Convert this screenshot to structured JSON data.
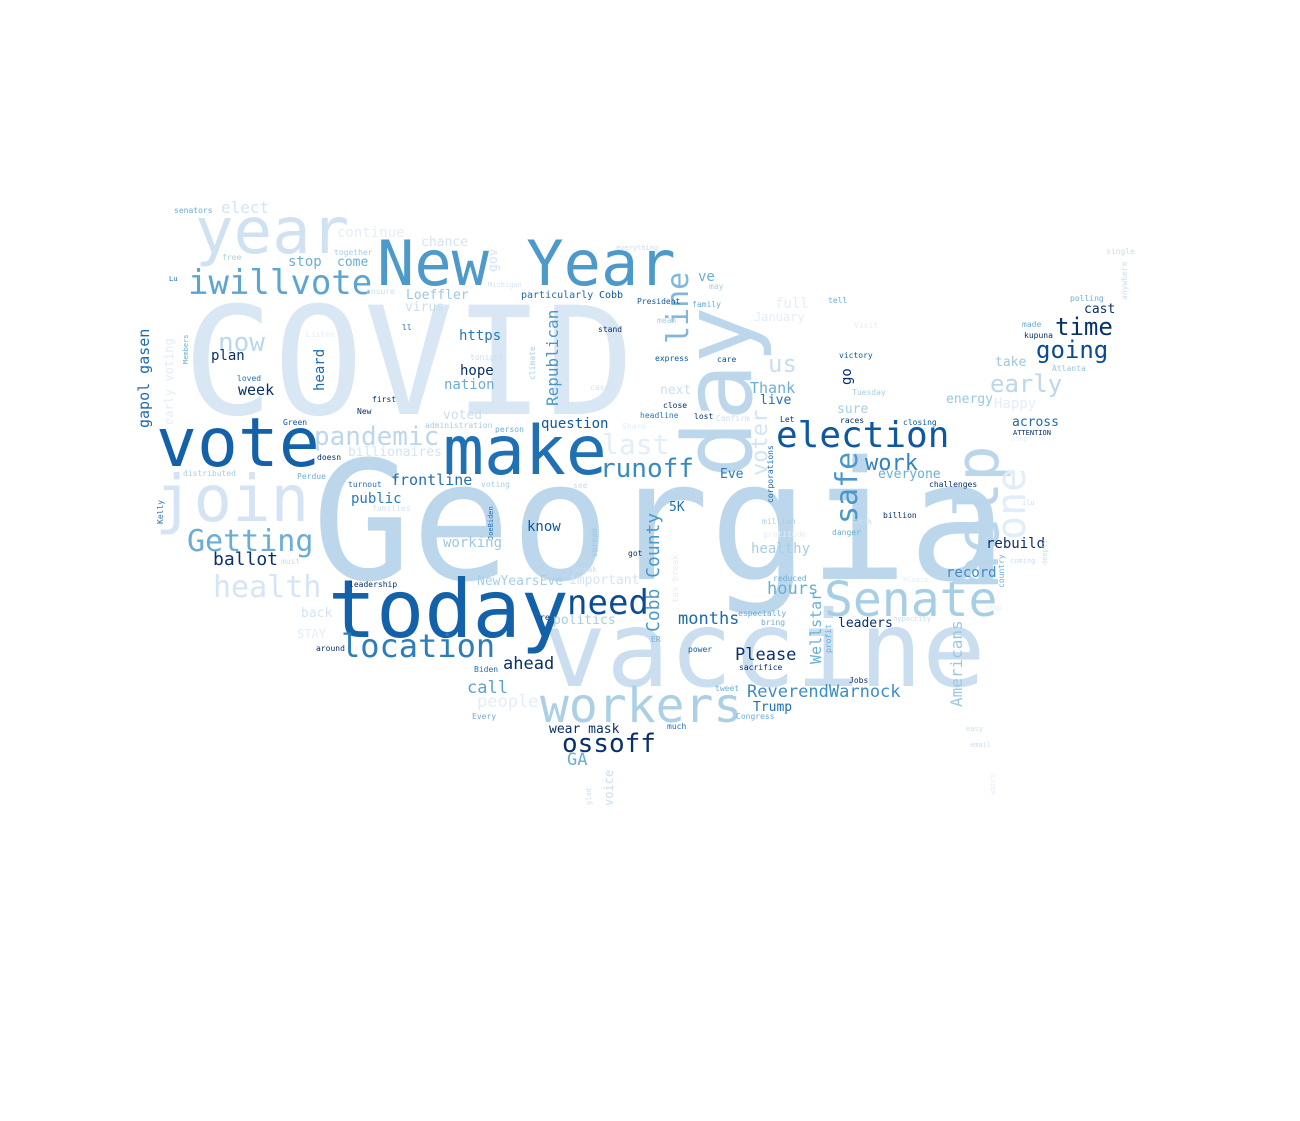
{
  "wordcloud": {
    "words": [
      {
        "text": "COVID",
        "color": "#d9e7f5"
      },
      {
        "text": "Georgia",
        "color": "#bcd7eb"
      },
      {
        "text": "vaccine",
        "color": "#cadef0"
      },
      {
        "text": "today",
        "color": "#1361a9"
      },
      {
        "text": "day",
        "color": "#bcd7eb"
      },
      {
        "text": "vote",
        "color": "#1361a9"
      },
      {
        "text": "make",
        "color": "#2070b4"
      },
      {
        "text": "New Year",
        "color": "#4d99ca"
      },
      {
        "text": "join",
        "color": "#d4e4f4"
      },
      {
        "text": "year",
        "color": "#d0e1f2"
      },
      {
        "text": "help",
        "color": "#bad6eb"
      },
      {
        "text": "Senate",
        "color": "#a6cee4"
      },
      {
        "text": "workers",
        "color": "#abd0e6"
      },
      {
        "text": "election",
        "color": "#0d58a1"
      },
      {
        "text": "one",
        "color": "#e1edf8"
      },
      {
        "text": "iwillvote",
        "color": "#5da5d1"
      },
      {
        "text": "need",
        "color": "#0b4d94"
      },
      {
        "text": "location",
        "color": "#2d7dbb"
      },
      {
        "text": "runoff",
        "color": "#3a8ac2"
      },
      {
        "text": "health",
        "color": "#d6e5f4"
      },
      {
        "text": "Getting",
        "color": "#6aaed6"
      },
      {
        "text": "pandemic",
        "color": "#bcd7eb"
      },
      {
        "text": "line",
        "color": "#7fb8da"
      },
      {
        "text": "safe",
        "color": "#4a98c9"
      },
      {
        "text": "ossoff",
        "color": "#08306b"
      },
      {
        "text": "last",
        "color": "#e3eef9"
      },
      {
        "text": "going",
        "color": "#0a4a90"
      },
      {
        "text": "early",
        "color": "#bcd7eb"
      },
      {
        "text": "time",
        "color": "#08306b"
      },
      {
        "text": "work",
        "color": "#3282be"
      },
      {
        "text": "now",
        "color": "#bcd7eb"
      },
      {
        "text": "us",
        "color": "#cadef0"
      },
      {
        "text": "ballot",
        "color": "#08306b"
      },
      {
        "text": "voter",
        "color": "#d4e4f4"
      },
      {
        "text": "Cobb County",
        "color": "#4a98c9"
      },
      {
        "text": "Republican",
        "color": "#4a98c9"
      },
      {
        "text": "Americans",
        "color": "#9ac8e0"
      },
      {
        "text": "ReverendWarnock",
        "color": "#3d8dc4"
      },
      {
        "text": "ahead",
        "color": "#08306b"
      },
      {
        "text": "frontline",
        "color": "#2070b4"
      },
      {
        "text": "Please",
        "color": "#08306b"
      },
      {
        "text": "call",
        "color": "#5ba3d0"
      },
      {
        "text": "months",
        "color": "#1c6aaf"
      },
      {
        "text": "hours",
        "color": "#6aaed6"
      },
      {
        "text": "Wellstar",
        "color": "#6aaed6"
      },
      {
        "text": "GA",
        "color": "#6aaed6"
      },
      {
        "text": "people",
        "color": "#e3eef9"
      },
      {
        "text": "gapol gasen",
        "color": "#1c6aaf"
      },
      {
        "text": "elect",
        "color": "#d4e4f4"
      },
      {
        "text": "week",
        "color": "#08306b"
      },
      {
        "text": "Thank",
        "color": "#6aaed6"
      },
      {
        "text": "record",
        "color": "#3d8dc4"
      },
      {
        "text": "rebuild",
        "color": "#08306b"
      },
      {
        "text": "healthy",
        "color": "#a6cee4"
      },
      {
        "text": "hope",
        "color": "#08306b"
      },
      {
        "text": "nation",
        "color": "#6aaed6"
      },
      {
        "text": "https",
        "color": "#2878b8"
      },
      {
        "text": "question",
        "color": "#0d58a1"
      },
      {
        "text": "know",
        "color": "#0d58a1"
      },
      {
        "text": "public",
        "color": "#2878b8"
      },
      {
        "text": "working",
        "color": "#9ac8e0"
      },
      {
        "text": "plan",
        "color": "#08306b"
      },
      {
        "text": "heard",
        "color": "#1c6aaf"
      },
      {
        "text": "stop",
        "color": "#6aaed6"
      },
      {
        "text": "come",
        "color": "#6aaed6"
      },
      {
        "text": "chance",
        "color": "#d4e4f4"
      },
      {
        "text": "continue",
        "color": "#e3eef9"
      },
      {
        "text": "Loeffler",
        "color": "#9ac8e0"
      },
      {
        "text": "virus",
        "color": "#cadef0"
      },
      {
        "text": "ve",
        "color": "#6aaed6"
      },
      {
        "text": "gov",
        "color": "#d4e4f4"
      },
      {
        "text": "full",
        "color": "#e3eef9"
      },
      {
        "text": "January",
        "color": "#e3eef9"
      },
      {
        "text": "take",
        "color": "#9ac8e0"
      },
      {
        "text": "Happy",
        "color": "#e3eef9"
      },
      {
        "text": "energy",
        "color": "#9ac8e0"
      },
      {
        "text": "across",
        "color": "#1c6aaf"
      },
      {
        "text": "cast",
        "color": "#08306b"
      },
      {
        "text": "next",
        "color": "#cadef0"
      },
      {
        "text": "live",
        "color": "#2070b4"
      },
      {
        "text": "sure",
        "color": "#a6cee4"
      },
      {
        "text": "go",
        "color": "#08306b"
      },
      {
        "text": "Eve",
        "color": "#2878b8"
      },
      {
        "text": "everyone",
        "color": "#6aaed6"
      },
      {
        "text": "5K",
        "color": "#2070b4"
      },
      {
        "text": "voted",
        "color": "#cadef0"
      },
      {
        "text": "billionaires",
        "color": "#d4e4f4"
      },
      {
        "text": "important",
        "color": "#d4e4f4"
      },
      {
        "text": "NewYearsEve",
        "color": "#a6cee4"
      },
      {
        "text": "politics",
        "color": "#a6cee4"
      },
      {
        "text": "leaders",
        "color": "#08306b"
      },
      {
        "text": "Trump",
        "color": "#2070b4"
      },
      {
        "text": "wear mask",
        "color": "#08306b"
      },
      {
        "text": "back",
        "color": "#d4e4f4"
      },
      {
        "text": "STAY",
        "color": "#e3eef9"
      },
      {
        "text": "early voting",
        "color": "#e3eef9"
      },
      {
        "text": "voice",
        "color": "#cadef0"
      },
      {
        "text": "senators",
        "color": "#6aaed6"
      },
      {
        "text": "together",
        "color": "#a6cee4"
      },
      {
        "text": "free",
        "color": "#a6cee4"
      },
      {
        "text": "ensure",
        "color": "#cadef0"
      },
      {
        "text": "Listen",
        "color": "#e3eef9"
      },
      {
        "text": "ll",
        "color": "#2070b4"
      },
      {
        "text": "loved",
        "color": "#2070b4"
      },
      {
        "text": "first",
        "color": "#08306b"
      },
      {
        "text": "New",
        "color": "#08306b"
      },
      {
        "text": "Green",
        "color": "#0d58a1"
      },
      {
        "text": "doesn",
        "color": "#08306b"
      },
      {
        "text": "Perdue",
        "color": "#6aaed6"
      },
      {
        "text": "turnout",
        "color": "#2070b4"
      },
      {
        "text": "distributed",
        "color": "#a6cee4"
      },
      {
        "text": "families",
        "color": "#d4e4f4"
      },
      {
        "text": "must",
        "color": "#cadef0"
      },
      {
        "text": "leadership",
        "color": "#08306b"
      },
      {
        "text": "around",
        "color": "#08306b"
      },
      {
        "text": "Members",
        "color": "#6aaed6"
      },
      {
        "text": "Kelly",
        "color": "#2070b4"
      },
      {
        "text": "Lu",
        "color": "#2070b4"
      },
      {
        "text": "particularly",
        "color": "#1c6aaf"
      },
      {
        "text": "Cobb",
        "color": "#0d58a1"
      },
      {
        "text": "President",
        "color": "#0d58a1"
      },
      {
        "text": "family",
        "color": "#6aaed6"
      },
      {
        "text": "may",
        "color": "#a6cee4"
      },
      {
        "text": "tell",
        "color": "#6aaed6"
      },
      {
        "text": "Visit",
        "color": "#e3eef9"
      },
      {
        "text": "single",
        "color": "#cadef0"
      },
      {
        "text": "anywhere",
        "color": "#cadef0"
      },
      {
        "text": "polling",
        "color": "#6aaed6"
      },
      {
        "text": "made",
        "color": "#6aaed6"
      },
      {
        "text": "kupuna",
        "color": "#08306b"
      },
      {
        "text": "Atlanta",
        "color": "#9ac8e0"
      },
      {
        "text": "stand",
        "color": "#08306b"
      },
      {
        "text": "express",
        "color": "#0d58a1"
      },
      {
        "text": "care",
        "color": "#0d58a1"
      },
      {
        "text": "victory",
        "color": "#0d58a1"
      },
      {
        "text": "Tuesday",
        "color": "#a6cee4"
      },
      {
        "text": "mean",
        "color": "#a6cee4"
      },
      {
        "text": "tonight",
        "color": "#cadef0"
      },
      {
        "text": "climate",
        "color": "#a6cee4"
      },
      {
        "text": "cases",
        "color": "#d4e4f4"
      },
      {
        "text": "close",
        "color": "#08306b"
      },
      {
        "text": "headline",
        "color": "#2878b8"
      },
      {
        "text": "lost",
        "color": "#08306b"
      },
      {
        "text": "Confirm",
        "color": "#cadef0"
      },
      {
        "text": "Let",
        "color": "#08306b"
      },
      {
        "text": "races",
        "color": "#08306b"
      },
      {
        "text": "closing",
        "color": "#0d58a1"
      },
      {
        "text": "ATTENTION",
        "color": "#08306b"
      },
      {
        "text": "administration",
        "color": "#a6cee4"
      },
      {
        "text": "person",
        "color": "#6aaed6"
      },
      {
        "text": "Share",
        "color": "#e3eef9"
      },
      {
        "text": "voting",
        "color": "#a6cee4"
      },
      {
        "text": "see",
        "color": "#cadef0"
      },
      {
        "text": "JoeBiden",
        "color": "#2070b4"
      },
      {
        "text": "challenges",
        "color": "#08306b"
      },
      {
        "text": "corporations",
        "color": "#1c6aaf"
      },
      {
        "text": "million",
        "color": "#a6cee4"
      },
      {
        "text": "task",
        "color": "#cadef0"
      },
      {
        "text": "billion",
        "color": "#08306b"
      },
      {
        "text": "danger",
        "color": "#6aaed6"
      },
      {
        "text": "gratitude",
        "color": "#e3eef9"
      },
      {
        "text": "break",
        "color": "#cadef0"
      },
      {
        "text": "spread",
        "color": "#9ac8e0"
      },
      {
        "text": "got",
        "color": "#08306b"
      },
      {
        "text": "tax break",
        "color": "#e3eef9"
      },
      {
        "text": "especially",
        "color": "#6aaed6"
      },
      {
        "text": "bring",
        "color": "#6aaed6"
      },
      {
        "text": "reduced",
        "color": "#6aaed6"
      },
      {
        "text": "country",
        "color": "#6aaed6"
      },
      {
        "text": "profit",
        "color": "#6aaed6"
      },
      {
        "text": "ER",
        "color": "#6aaed6"
      },
      {
        "text": "power",
        "color": "#0d58a1"
      },
      {
        "text": "sacrifice",
        "color": "#08306b"
      },
      {
        "text": "Jobs",
        "color": "#08306b"
      },
      {
        "text": "tweet",
        "color": "#6aaed6"
      },
      {
        "text": "Congress",
        "color": "#6aaed6"
      },
      {
        "text": "Biden",
        "color": "#2070b4"
      },
      {
        "text": "Every",
        "color": "#6aaed6"
      },
      {
        "text": "much",
        "color": "#2070b4"
      },
      {
        "text": "re",
        "color": "#08306b"
      },
      {
        "text": "glad",
        "color": "#cadef0"
      },
      {
        "text": "coming",
        "color": "#cadef0"
      },
      {
        "text": "deeply",
        "color": "#cadef0"
      },
      {
        "text": "hypocrisy",
        "color": "#cadef0"
      },
      {
        "text": "Please",
        "color": "#e3eef9"
      },
      {
        "text": "ilu",
        "color": "#cadef0"
      },
      {
        "text": "stop",
        "color": "#e3eef9"
      },
      {
        "text": "easy",
        "color": "#cadef0"
      },
      {
        "text": "email",
        "color": "#cadef0"
      },
      {
        "text": "watch",
        "color": "#e3eef9"
      },
      {
        "text": "everything",
        "color": "#cadef0"
      },
      {
        "text": "Michigan",
        "color": "#d4e4f4"
      },
      {
        "text": "stop",
        "color": "#e3eef9"
      }
    ]
  }
}
